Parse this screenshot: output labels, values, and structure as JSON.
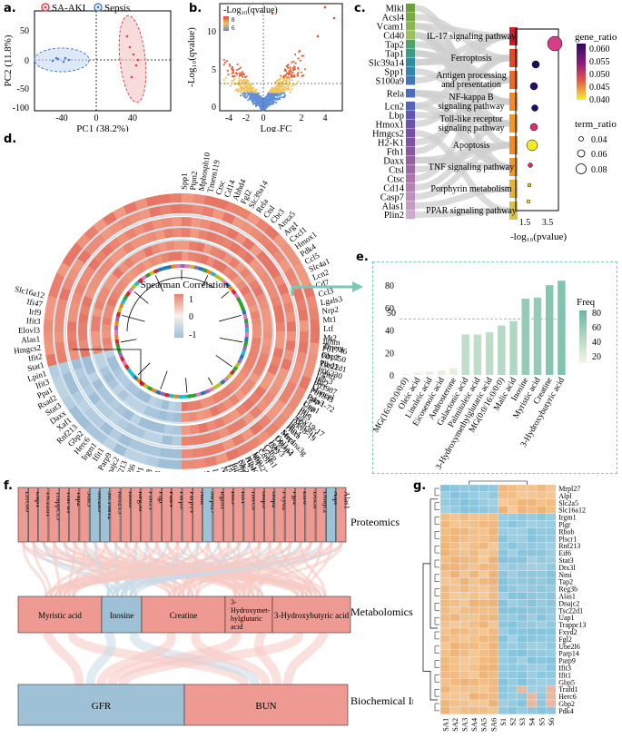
{
  "colors": {
    "saaki": "#d9454b",
    "sepsis": "#4a7fd0",
    "heat_red": "#e9806e",
    "heat_blue": "#a9c6dc",
    "teal_bar": "#8ac7b0",
    "pink_ribbon": "#f0a8a0",
    "blue_ribbon": "#9fc1d6"
  },
  "panel_a": {
    "label": "a.",
    "legend": [
      "SA-AKI",
      "Sepsis"
    ],
    "xlabel": "PC1 (38.2%)",
    "ylabel": "PC2 (11.8%)",
    "xticks": [
      "-40",
      "0",
      "40"
    ],
    "yticks": [
      "50",
      "0",
      "-50",
      "-100"
    ]
  },
  "panel_b": {
    "label": "b.",
    "legend_title": "-Log₁₀(qvalue)",
    "legend_ticks": [
      "8",
      "6"
    ],
    "ylabel": "-Log₁₀(qvalue)",
    "xlabel": "Log₂FC",
    "xticks": [
      "-4",
      "-2",
      "0",
      "2",
      "4"
    ],
    "yticks": [
      "10",
      "5",
      "0"
    ]
  },
  "panel_c": {
    "label": "c.",
    "genes": [
      "Mlkl",
      "Acsl4",
      "Vcam1",
      "Cd40",
      "Tap2",
      "Tap1",
      "Slc39a14",
      "Spp1",
      "S100a9",
      "Rela",
      "Lcn2",
      "Lbp",
      "Hmox1",
      "Hmgcs2",
      "H2-K1",
      "Fth1",
      "Daxx",
      "Ctsl",
      "Ctsc",
      "Cd14",
      "Casp7",
      "Alas1",
      "Plin2"
    ],
    "pathways": [
      "IL-17 signaling pathway",
      "Ferroptosis",
      "Antigen processing and presentation",
      "NF-kappa B signaling pathway",
      "Toll-like receptor signaling pathway",
      "Apoptosis",
      "TNF signaling pathway",
      "Porphyrin metabolism",
      "PPAR signaling pathway"
    ],
    "xlabel": "-log₁₀(pvalue)",
    "xticks": [
      "1.5",
      "3.5"
    ],
    "gene_ratio_title": "gene_ratio",
    "gene_ratio_ticks": [
      "0.060",
      "0.055",
      "0.050",
      "0.045",
      "0.040"
    ],
    "term_ratio_title": "term_ratio",
    "term_ratio_ticks": [
      "0.04",
      "0.06",
      "0.08"
    ]
  },
  "panel_d": {
    "label": "d.",
    "legend_title": "Spearman Correlation",
    "legend_ticks": [
      "1",
      "0",
      "-1"
    ],
    "red_labels": [
      "Spp1",
      "Ptpn2",
      "Mphosph10",
      "Tmem119",
      "Ctsc",
      "Cd14",
      "Abhd4",
      "Fgl2",
      "Slc39a14",
      "Rela",
      "Ctsl",
      "Cbr3",
      "Anxa5",
      "Arg1",
      "Cxcl1",
      "Hmox1",
      "Pdk4",
      "Ccl5",
      "Slc4a1",
      "Lcn2",
      "Cd7",
      "Ccl3",
      "Lgals3",
      "Nrp2",
      "Mt1",
      "Ltf",
      "Mt2",
      "Tmem",
      "Gbp2",
      "Tsc22d1",
      "Irgm1",
      "Ifit2",
      "Maneal",
      "Psip3",
      "Ctss",
      "Ifit3",
      "Aldh3b1",
      "Rtp4",
      "Serpina3g",
      "Dlgap4",
      "Cd5",
      "Vcam1",
      "Igtp",
      "H2-K1",
      "Gbp5",
      "Etv6",
      "Nmi",
      "Ifit2",
      "Steap4",
      "Xaf1",
      "Glrpt2",
      "Ctec2d",
      "Parp14",
      "Ifit3",
      "Dhx58",
      "Oasl1",
      "Ube2l6",
      "Rnf213",
      "Dnajc2",
      "Parp9",
      "Ifit1",
      "Irgm1",
      "Herc6",
      "Gbp2",
      "Rnf213",
      "Xaf1",
      "Daxx",
      "Stat3",
      "Rsad2",
      "Ppa1",
      "Ifit3",
      "Lpin1",
      "Stat1",
      "Ifit2",
      "Hmgcs2",
      "Alas1",
      "Elovl3",
      "Ifit3",
      "Irf9",
      "Ifi47",
      "Slc16a12"
    ],
    "blue_labels": [
      "Ighm",
      "P01746",
      "P01750",
      "Plbd1",
      "P06330",
      "Igh-3",
      "P03987",
      "P01843",
      "Igkv1-72",
      "Uap1",
      "Pflc",
      "Igkv19-17",
      "Igkv8-19",
      "Hexa",
      "Mrc1",
      "Col1a2",
      "Igkv3",
      "C4bp",
      "Cd5l",
      "Mrpl27",
      "Alpl",
      "Slc2a5",
      "Itih4",
      "Ugt8"
    ]
  },
  "panel_e": {
    "label": "e.",
    "legend_title": "Freq",
    "legend_ticks": [
      "80",
      "60",
      "40",
      "20"
    ],
    "threshold_label": "50",
    "yticks": [
      "80",
      "60",
      "40",
      "20",
      "0"
    ]
  },
  "chart_data": {
    "type": "bar",
    "title": "",
    "xlabel": "",
    "ylabel": "",
    "ylim": [
      0,
      85
    ],
    "threshold": 50,
    "categories": [
      "MG(16:0/0:0/0:0)",
      "Oleic acid",
      "Linoleic acid",
      "Eicosenoic acid",
      "Androsterone",
      "Galactonic acid",
      "Palmitoleic acid",
      "3-Hydroxymethylglutaric acid",
      "MG(0:0/16:0/0:0)",
      "Malic acid",
      "Inosine",
      "Myristic acid",
      "Creatine",
      "3-Hydroxybutyric acid"
    ],
    "values": [
      1,
      2,
      3,
      4,
      6,
      36,
      36,
      38,
      44,
      48,
      68,
      69,
      80,
      84
    ]
  },
  "panel_f": {
    "label": "f.",
    "proteins": [
      {
        "name": "Lrrc8b",
        "up": true
      },
      {
        "name": "Uap1",
        "up": true
      },
      {
        "name": "Tsc22d1",
        "up": true
      },
      {
        "name": "Trappc13",
        "up": true
      },
      {
        "name": "Traf d1",
        "up": true
      },
      {
        "name": "Tap2",
        "up": true
      },
      {
        "name": "Stat3",
        "up": true
      },
      {
        "name": "Slc2a5",
        "up": false
      },
      {
        "name": "Slc16a12",
        "up": false
      },
      {
        "name": "Rnf213",
        "up": true
      },
      {
        "name": "Rhob",
        "up": true
      },
      {
        "name": "Reg3b",
        "up": true
      },
      {
        "name": "Plscr1",
        "up": true
      },
      {
        "name": "Pigr",
        "up": true
      },
      {
        "name": "Pdk4",
        "up": true
      },
      {
        "name": "Parp9",
        "up": true
      },
      {
        "name": "Parp14",
        "up": true
      },
      {
        "name": "Nmi",
        "up": true
      },
      {
        "name": "Mrpl27",
        "up": false
      },
      {
        "name": "Irgm1",
        "up": true
      },
      {
        "name": "Ifit3",
        "up": true
      },
      {
        "name": "Ifit1",
        "up": true
      },
      {
        "name": "Herc6",
        "up": true
      },
      {
        "name": "Gbp5",
        "up": true
      },
      {
        "name": "Gbp2",
        "up": true
      },
      {
        "name": "Fxyd2",
        "up": true
      },
      {
        "name": "Fgl2",
        "up": true
      },
      {
        "name": "Eif6",
        "up": true
      },
      {
        "name": "Dtx3l",
        "up": true
      },
      {
        "name": "Dnajc2",
        "up": true
      },
      {
        "name": "Alpl",
        "up": false
      },
      {
        "name": "Alas1",
        "up": true
      }
    ],
    "metabolites": [
      {
        "name": "Myristic acid",
        "up": true
      },
      {
        "name": "Inosine",
        "up": false
      },
      {
        "name": "Creatine",
        "up": true
      },
      {
        "name": "3-Hydroxymethylglutaric acid",
        "up": true
      },
      {
        "name": "3-Hydroxybutyric acid",
        "up": true
      }
    ],
    "biochem": [
      {
        "name": "GFR",
        "up": false
      },
      {
        "name": "BUN",
        "up": true
      }
    ],
    "row_labels": {
      "proteomics": "Proteomics",
      "metabolomics": "Metabolomics",
      "biochem": "Biochemical Index"
    }
  },
  "panel_g": {
    "label": "g.",
    "rows": [
      "Mrpl27",
      "Alpl",
      "Slc2a5",
      "Slc16a12",
      "Irgm1",
      "Pigr",
      "Rhob",
      "Plscr1",
      "Rnf213",
      "Eif6",
      "Stat3",
      "Dtx3l",
      "Nmi",
      "Tap2",
      "Reg3b",
      "Alas1",
      "Dnajc2",
      "Tsc22d1",
      "Uap1",
      "Trappc13",
      "Fxyd2",
      "Fgl2",
      "Ube2l6",
      "Parp14",
      "Parp9",
      "Ifit3",
      "Ifit1",
      "Gbp5",
      "Trafd1",
      "Herc6",
      "Gbp2",
      "Pdk4"
    ],
    "cols": [
      "SA1",
      "SA2",
      "SA3",
      "SA4",
      "SA5",
      "SA6",
      "S1",
      "S2",
      "S3",
      "S4",
      "S5",
      "S6"
    ]
  }
}
